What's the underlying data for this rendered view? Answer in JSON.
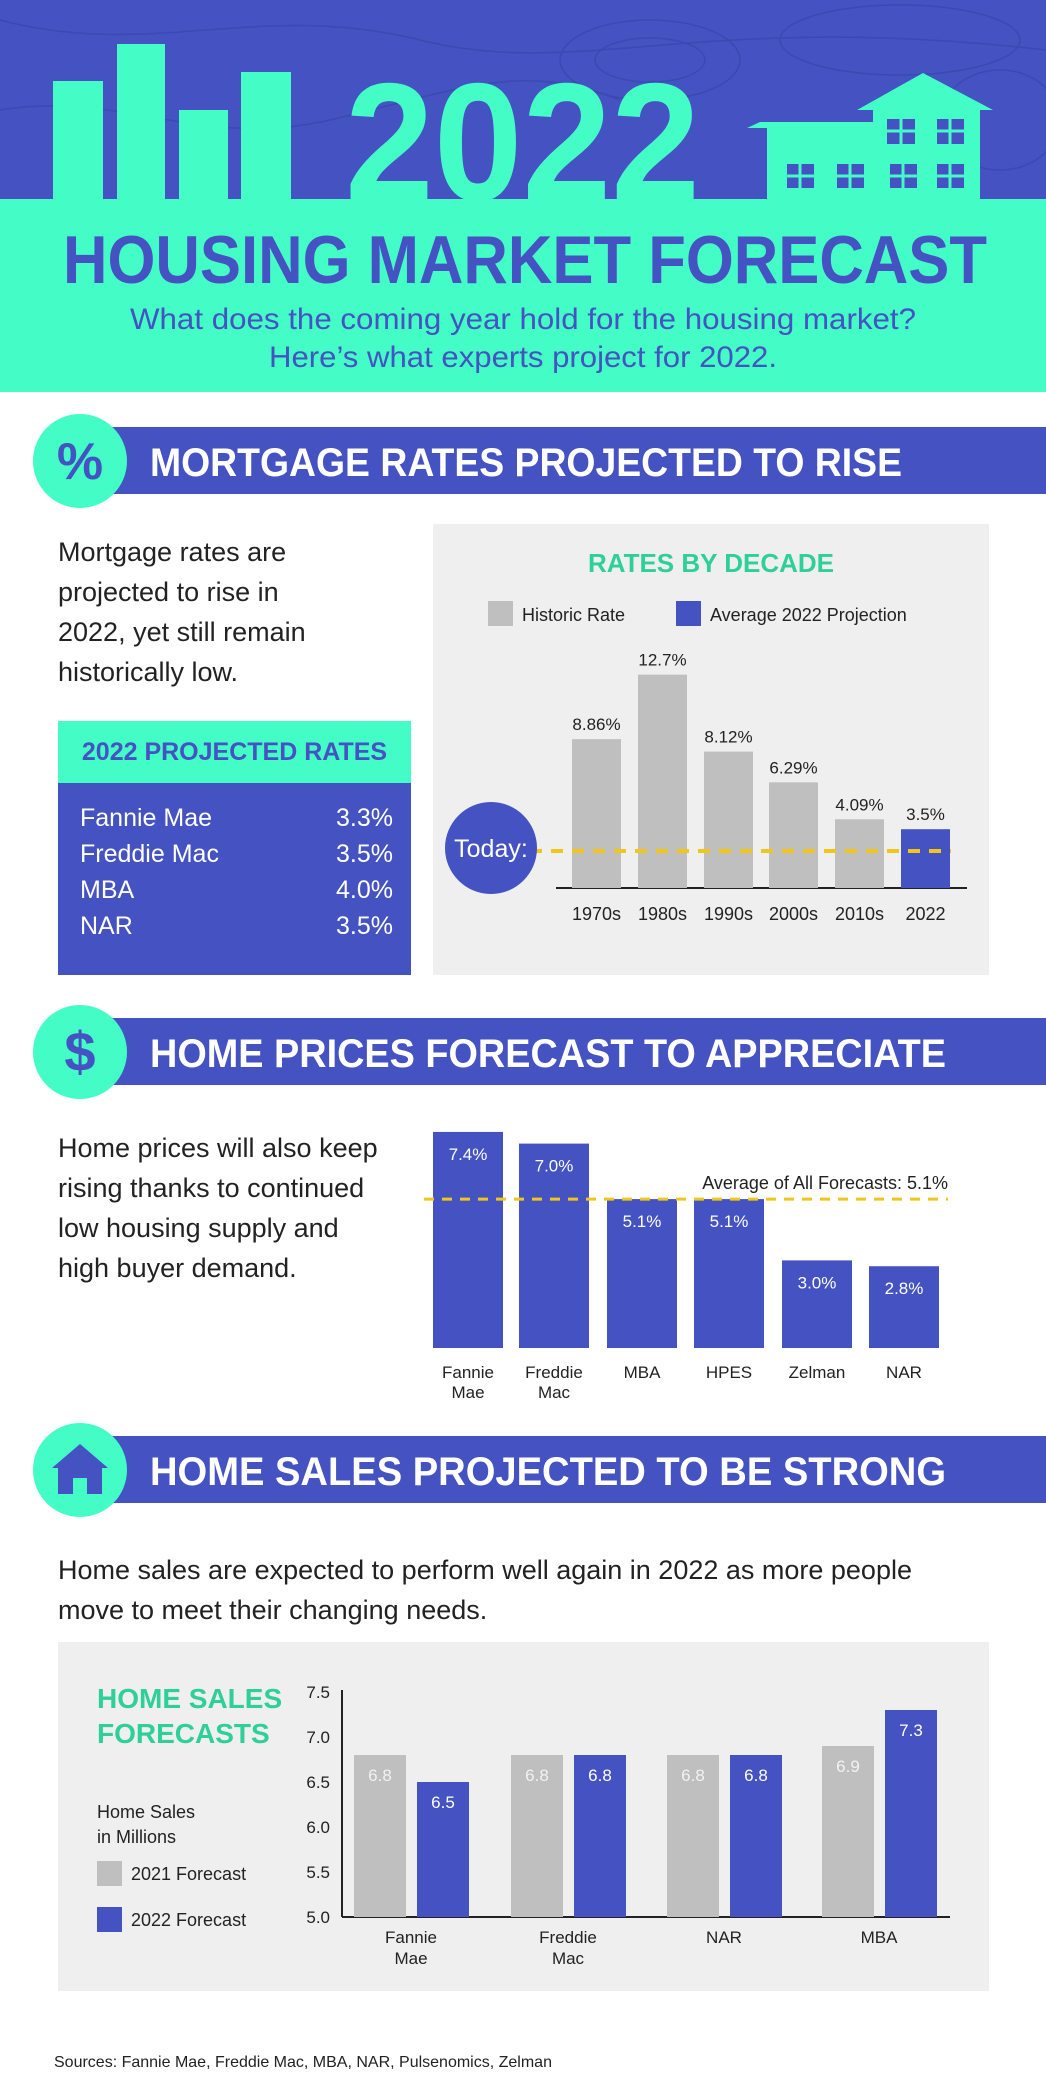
{
  "colors": {
    "purple": "#4452c2",
    "mint": "#43fcc6",
    "teal": "#2ecf98",
    "gray": "#bfbfbf",
    "dash": "#f2c618"
  },
  "header": {
    "year": "2022",
    "title": "HOUSING MARKET FORECAST",
    "subtitle_line1": "What does the coming year hold for the housing market?",
    "subtitle_line2": "Here’s what experts project for 2022."
  },
  "sections": [
    {
      "icon": "percent-icon",
      "glyph": "%",
      "title": "MORTGAGE RATES PROJECTED TO RISE"
    },
    {
      "icon": "dollar-icon",
      "glyph": "$",
      "title": "HOME PRICES FORECAST TO APPRECIATE"
    },
    {
      "icon": "house-icon",
      "glyph": "",
      "title": "HOME SALES PROJECTED TO BE STRONG"
    }
  ],
  "mortgage": {
    "text": [
      "Mortgage rates are",
      "projected to rise in",
      "2022, yet still remain",
      "historically low."
    ],
    "projected_title": "2022 PROJECTED RATES",
    "projected": [
      {
        "name": "Fannie Mae",
        "value": "3.3%"
      },
      {
        "name": "Freddie Mac",
        "value": "3.5%"
      },
      {
        "name": "MBA",
        "value": "4.0%"
      },
      {
        "name": "NAR",
        "value": "3.5%"
      }
    ],
    "today_label": "Today:"
  },
  "prices": {
    "text": [
      "Home prices will also keep",
      "rising thanks to continued",
      "low housing supply and",
      "high buyer demand."
    ]
  },
  "sales": {
    "text": [
      "Home sales are expected to perform well again in 2022 as more people",
      "move to meet their changing needs."
    ]
  },
  "sources": "Sources: Fannie Mae, Freddie Mac, MBA, NAR, Pulsenomics, Zelman",
  "chart_data": [
    {
      "type": "bar",
      "title": "RATES BY DECADE",
      "legend": [
        "Historic Rate",
        "Average 2022 Projection"
      ],
      "categories": [
        "1970s",
        "1980s",
        "1990s",
        "2000s",
        "2010s",
        "2022"
      ],
      "values": [
        8.86,
        12.7,
        8.12,
        6.29,
        4.09,
        3.5
      ],
      "labels": [
        "8.86%",
        "12.7%",
        "8.12%",
        "6.29%",
        "4.09%",
        "3.5%"
      ],
      "series_type": [
        "historic",
        "historic",
        "historic",
        "historic",
        "historic",
        "projection"
      ]
    },
    {
      "type": "bar",
      "title": "",
      "categories": [
        "Fannie Mae",
        "Freddie Mac",
        "MBA",
        "HPES",
        "Zelman",
        "NAR"
      ],
      "values": [
        7.4,
        7.0,
        5.1,
        5.1,
        3.0,
        2.8
      ],
      "labels": [
        "7.4%",
        "7.0%",
        "5.1%",
        "5.1%",
        "3.0%",
        "2.8%"
      ],
      "average": 5.1,
      "average_label": "Average of All Forecasts: 5.1%"
    },
    {
      "type": "bar",
      "title": "HOME SALES FORECASTS",
      "ylabel": "Home Sales in Millions",
      "ylabel_lines": [
        "Home Sales",
        "in Millions"
      ],
      "categories": [
        "Fannie Mae",
        "Freddie Mac",
        "NAR",
        "MBA"
      ],
      "series": [
        {
          "name": "2021 Forecast",
          "values": [
            6.8,
            6.8,
            6.8,
            6.9
          ]
        },
        {
          "name": "2022 Forecast",
          "values": [
            6.5,
            6.8,
            6.8,
            7.3
          ]
        }
      ],
      "ylim": [
        5.0,
        7.5
      ],
      "yticks": [
        "5.0",
        "5.5",
        "6.0",
        "6.5",
        "7.0",
        "7.5"
      ],
      "title_lines": [
        "HOME SALES",
        "FORECASTS"
      ]
    }
  ]
}
